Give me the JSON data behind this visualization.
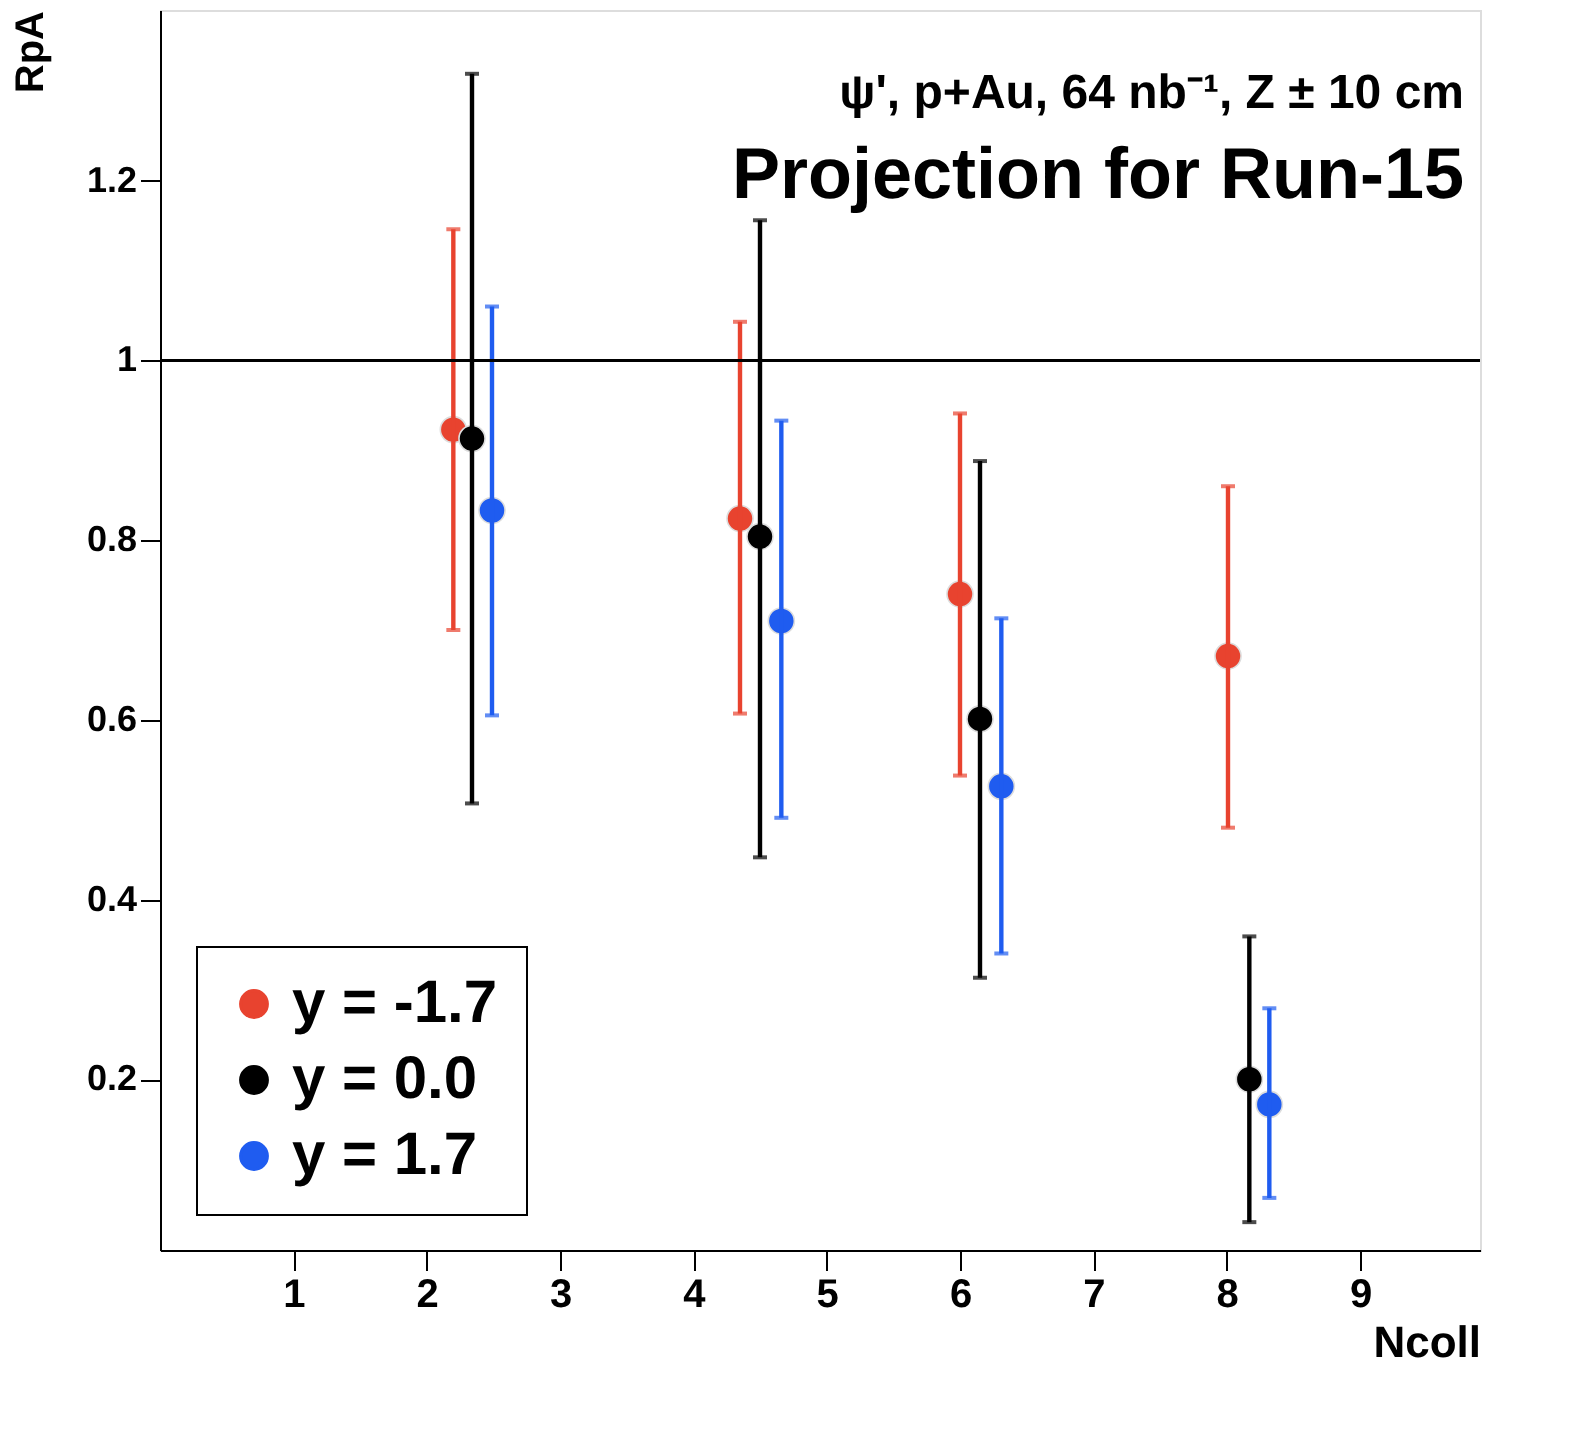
{
  "chart_data": {
    "type": "scatter",
    "annotations": [
      "ψ', p+Au, 64 nb⁻¹, Z ± 10 cm",
      "Projection for Run-15"
    ],
    "xlabel": "Ncoll",
    "ylabel": "RpA",
    "xlim": [
      0,
      9.9
    ],
    "xticks": [
      1,
      2,
      3,
      4,
      5,
      6,
      7,
      8,
      9
    ],
    "ylim": [
      0.01,
      1.39
    ],
    "yticks": [
      0.2,
      0.4,
      0.6,
      0.8,
      1,
      1.2
    ],
    "series": [
      {
        "name": "y = -1.7",
        "color": "#e8432f",
        "x": [
          2.2,
          4.35,
          6.0,
          8.01
        ],
        "values": [
          0.923,
          0.824,
          0.74,
          0.671
        ],
        "errors": [
          [
            0.7,
            1.146
          ],
          [
            0.607,
            1.043
          ],
          [
            0.538,
            0.941
          ],
          [
            0.48,
            0.86
          ]
        ]
      },
      {
        "name": "y = 0.0",
        "color": "#000000",
        "x": [
          2.34,
          4.5,
          6.15,
          8.17
        ],
        "values": [
          0.913,
          0.804,
          0.601,
          0.2
        ],
        "errors": [
          [
            0.507,
            1.319
          ],
          [
            0.447,
            1.156
          ],
          [
            0.313,
            0.888
          ],
          [
            0.041,
            0.359
          ]
        ]
      },
      {
        "name": "y = 1.7",
        "color": "#1f5cf0",
        "x": [
          2.49,
          4.66,
          6.31,
          8.32
        ],
        "values": [
          0.833,
          0.71,
          0.526,
          0.172
        ],
        "errors": [
          [
            0.605,
            1.06
          ],
          [
            0.491,
            0.933
          ],
          [
            0.34,
            0.713
          ],
          [
            0.068,
            0.279
          ]
        ]
      }
    ],
    "ref_lines": [
      {
        "axis": "y",
        "value": 1,
        "color": "#000000"
      }
    ],
    "legend": "bottom left",
    "grid": false,
    "marker": "circle"
  }
}
